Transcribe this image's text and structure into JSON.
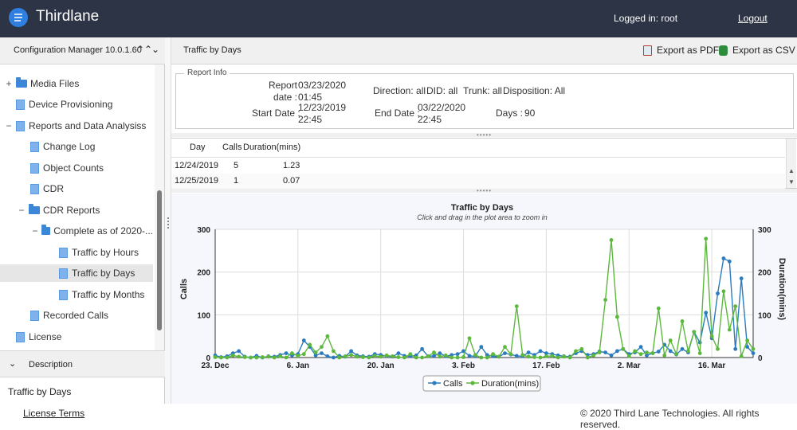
{
  "app": {
    "title": "Thirdlane",
    "logged_in": "Logged in: root",
    "logout": "Logout"
  },
  "config_manager": {
    "title": "Configuration Manager 10.0.1.60"
  },
  "tree": [
    {
      "label": "Media Files",
      "expander": "+",
      "icon": "folder"
    },
    {
      "label": "Device Provisioning",
      "expander": "",
      "icon": "document"
    },
    {
      "label": "Reports and Data Analysiss",
      "expander": "−",
      "icon": "folder-doc"
    },
    {
      "label": "Change Log",
      "icon": "document"
    },
    {
      "label": "Object Counts",
      "icon": "document"
    },
    {
      "label": "CDR",
      "icon": "document"
    },
    {
      "label": "CDR Reports",
      "expander": "−",
      "icon": "folder"
    },
    {
      "label": "Complete as of 2020-...",
      "expander": "−",
      "icon": "folder"
    },
    {
      "label": "Traffic by Hours",
      "icon": "document"
    },
    {
      "label": "Traffic by Days",
      "icon": "document",
      "selected": true
    },
    {
      "label": "Traffic by Months",
      "icon": "document"
    },
    {
      "label": "Recorded Calls",
      "icon": "document"
    },
    {
      "label": "License",
      "icon": "document"
    }
  ],
  "description": {
    "title": "Description",
    "text": "Traffic by Days"
  },
  "main": {
    "title": "Traffic by Days",
    "export_pdf": "Export as PDF",
    "export_csv": "Export as CSV"
  },
  "report_info": {
    "legend": "Report Info",
    "report_date_label_1": "Report",
    "report_date_label_2": "date :",
    "report_date_value_1": "03/23/2020",
    "report_date_value_2": "01:45",
    "direction": "Direction: all",
    "did": "DID: all",
    "trunk": "Trunk: all",
    "disposition": "Disposition: All",
    "start_date_label": "Start Date :",
    "start_date_value_1": "12/23/2019",
    "start_date_value_2": "22:45",
    "end_date_label": "End Date :",
    "end_date_value_1": "03/22/2020",
    "end_date_value_2": "22:45",
    "days_label": "Days :",
    "days_value": "90"
  },
  "grid": {
    "columns": [
      "Day",
      "Calls",
      "Duration(mins)"
    ],
    "rows": [
      [
        "12/24/2019",
        "5",
        "1.23"
      ],
      [
        "12/25/2019",
        "1",
        "0.07"
      ]
    ]
  },
  "chart_data": {
    "type": "line",
    "title": "Traffic by Days",
    "subtitle": "Click and drag in the plot area to zoom in",
    "ylabel": "Calls",
    "y2label": "Duration(mins)",
    "ylim": [
      0,
      300
    ],
    "y2lim": [
      0,
      300
    ],
    "yticks": [
      "0",
      "100",
      "200",
      "300"
    ],
    "y2ticks": [
      "0",
      "100",
      "200",
      "300"
    ],
    "xtick_labels": [
      "23. Dec",
      "6. Jan",
      "20. Jan",
      "3. Feb",
      "17. Feb",
      "2. Mar",
      "16. Mar"
    ],
    "xtick_days": [
      0,
      14,
      28,
      42,
      56,
      70,
      84
    ],
    "grid": true,
    "legend_position": "bottom-center",
    "series": [
      {
        "name": "Calls",
        "color": "#2b7bbf",
        "values": [
          5,
          1,
          3,
          10,
          15,
          2,
          0,
          4,
          0,
          3,
          2,
          6,
          10,
          5,
          8,
          40,
          25,
          5,
          10,
          3,
          0,
          4,
          2,
          15,
          5,
          3,
          2,
          8,
          6,
          4,
          2,
          10,
          4,
          3,
          5,
          20,
          3,
          4,
          10,
          3,
          6,
          8,
          15,
          4,
          3,
          25,
          6,
          3,
          2,
          10,
          7,
          4,
          3,
          12,
          6,
          15,
          10,
          8,
          5,
          3,
          2,
          10,
          15,
          6,
          8,
          14,
          12,
          5,
          15,
          20,
          8,
          12,
          25,
          5,
          10,
          14,
          30,
          15,
          7,
          20,
          12,
          60,
          35,
          105,
          45,
          150,
          232,
          225,
          20,
          185,
          25,
          10
        ]
      },
      {
        "name": "Duration(mins)",
        "color": "#5cb83c",
        "values": [
          1,
          0,
          0,
          5,
          2,
          1,
          0,
          0,
          1,
          2,
          0,
          3,
          0,
          10,
          4,
          8,
          30,
          12,
          25,
          50,
          15,
          0,
          3,
          6,
          2,
          1,
          0,
          4,
          2,
          5,
          3,
          1,
          0,
          8,
          0,
          0,
          3,
          12,
          2,
          5,
          0,
          0,
          1,
          45,
          6,
          0,
          0,
          8,
          2,
          25,
          8,
          120,
          6,
          2,
          1,
          0,
          3,
          4,
          0,
          2,
          0,
          15,
          20,
          0,
          5,
          12,
          135,
          275,
          95,
          20,
          3,
          15,
          8,
          12,
          10,
          115,
          5,
          40,
          8,
          85,
          15,
          60,
          10,
          278,
          50,
          20,
          155,
          65,
          120,
          3,
          40,
          20
        ]
      }
    ]
  },
  "footer": {
    "license_terms": "License Terms",
    "copyright": "© 2020 Third Lane Technologies. All rights reserved."
  }
}
